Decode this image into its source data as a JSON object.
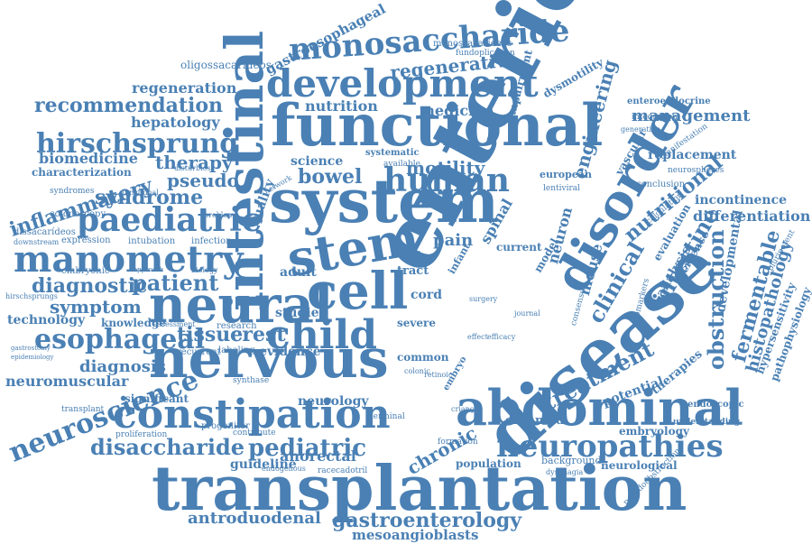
{
  "color": "#4a80b4",
  "words": [
    "enteric",
    "disease",
    "system",
    "transplantation",
    "functional",
    "nervous",
    "neural",
    "abdominal",
    "intestinal",
    "disorder",
    "stem",
    "cell",
    "constipation",
    "child",
    "development",
    "monosaccharide",
    "manometry",
    "paediatric",
    "neuropathies",
    "hirschsprung",
    "esophageal",
    "human",
    "neuroscience",
    "pediatric",
    "disaccharide",
    "recommendation",
    "gastroenterology",
    "antroduodenal",
    "mesoangioblasts",
    "regenerative",
    "treatment",
    "obstruction",
    "clinical",
    "intestine",
    "engineering",
    "management",
    "fermentable",
    "histopathology",
    "differentiation",
    "nutritional",
    "syndrome",
    "inflammatory",
    "therapy",
    "pseudo",
    "diagnostic",
    "patient",
    "symptom",
    "tissue",
    "crest",
    "diagnosis",
    "neuromuscular",
    "technology",
    "bowel",
    "motility",
    "nutrition",
    "medicine",
    "regeneration",
    "hepatology",
    "biomedicine",
    "characterization",
    "quality",
    "science",
    "spinal",
    "cord",
    "mouse",
    "neuron",
    "guideline",
    "anorectal",
    "chronic",
    "population",
    "embryology",
    "neurological",
    "incontinence",
    "replacement",
    "developmental",
    "hypersensitivity",
    "pathophysiology",
    "endoscopic",
    "understanding",
    "analysis",
    "evaluation",
    "incidence",
    "potential",
    "organoid",
    "pain",
    "adult",
    "studies",
    "evidence",
    "neurology",
    "significant",
    "knowledge",
    "gastroesophageal",
    "monossacarídeos",
    "oligossacarídeos",
    "fundoplication",
    "impairment",
    "dysmotility",
    "enteroendocrine",
    "integration",
    "neurospheres",
    "conclusion",
    "european",
    "lentiviral",
    "vascular",
    "manifestation",
    "dissacarídeos",
    "syndromes",
    "colonoscopy",
    "expression",
    "intubation",
    "infection",
    "embryonic",
    "recurrent",
    "labeling",
    "synthase",
    "terminal",
    "formation",
    "background",
    "dysphagia",
    "pseudoobstruction",
    "progenitor",
    "contribute",
    "transplant",
    "proliferation",
    "endogenous",
    "racecadotril",
    "research",
    "assessment",
    "current",
    "model",
    "therapies",
    "consensus",
    "tract",
    "severe",
    "common",
    "colonic",
    "retinoic",
    "embryo",
    "crianças",
    "infant",
    "effect",
    "efficacy",
    "surgery",
    "journal",
    "systematic",
    "available",
    "network",
    "problem",
    "functional",
    "pluripotent",
    "biomarkers",
    "generation",
    "calculation",
    "hirschsprungs",
    "gastrostomy",
    "epidemiology",
    "downstream",
    "distúrbios",
    "approach",
    "biology"
  ]
}
